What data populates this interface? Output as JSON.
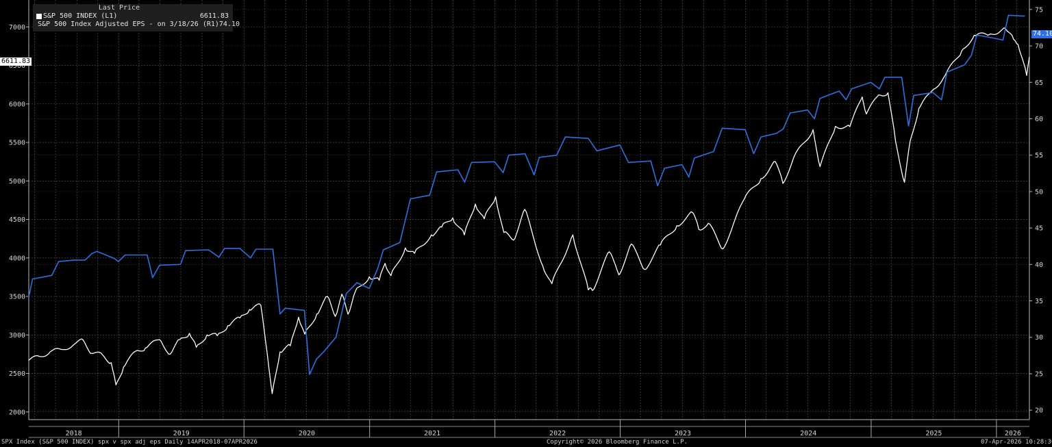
{
  "legend": {
    "header": "Last Price",
    "items": [
      {
        "label": "S&P 500 INDEX  (L1)",
        "value": "6611.83",
        "color": "#ffffff"
      },
      {
        "label": "S&P 500 Index Adjusted EPS -  on 3/18/26  (R1)",
        "value": "74.10",
        "color": "#2f6fe0"
      }
    ]
  },
  "tags": {
    "left": "6611.83",
    "right": "74.10"
  },
  "footer": {
    "left": "SPX Index (S&P 500 INDEX) spx v spx adj eps Daily 14APR2018-07APR2026",
    "center": "Copyright© 2026 Bloomberg Finance L.P.",
    "right": "07-Apr-2026 10:28:30"
  },
  "chart_data": {
    "type": "line",
    "x_range": [
      "2018-04-14",
      "2026-04-07"
    ],
    "x_tick_labels": [
      "2018",
      "2019",
      "2020",
      "2021",
      "2022",
      "2023",
      "2024",
      "2025",
      "2026"
    ],
    "y_left": {
      "range": [
        1900,
        7350
      ],
      "ticks": [
        2000,
        2500,
        3000,
        3500,
        4000,
        4500,
        5000,
        5500,
        6000,
        6500,
        7000
      ]
    },
    "y_right": {
      "range": [
        18.7,
        76.3
      ],
      "ticks": [
        20,
        25,
        30,
        35,
        40,
        45,
        50,
        55,
        60,
        65,
        70,
        75
      ]
    },
    "grid": true,
    "legend_position": "top-left",
    "series": [
      {
        "name": "S&P 500 INDEX  (L1)",
        "axis": "left",
        "color": "#ffffff",
        "points": [
          [
            "2018-04-14",
            2670
          ],
          [
            "2018-05-15",
            2720
          ],
          [
            "2018-06-15",
            2780
          ],
          [
            "2018-07-20",
            2810
          ],
          [
            "2018-08-25",
            2880
          ],
          [
            "2018-09-20",
            2930
          ],
          [
            "2018-10-15",
            2760
          ],
          [
            "2018-11-15",
            2740
          ],
          [
            "2018-12-10",
            2640
          ],
          [
            "2018-12-24",
            2351
          ],
          [
            "2019-01-15",
            2580
          ],
          [
            "2019-02-20",
            2790
          ],
          [
            "2019-03-20",
            2830
          ],
          [
            "2019-04-30",
            2940
          ],
          [
            "2019-05-31",
            2750
          ],
          [
            "2019-06-28",
            2940
          ],
          [
            "2019-07-26",
            3020
          ],
          [
            "2019-08-15",
            2840
          ],
          [
            "2019-09-15",
            3000
          ],
          [
            "2019-10-15",
            2990
          ],
          [
            "2019-11-15",
            3120
          ],
          [
            "2019-12-20",
            3220
          ],
          [
            "2020-01-17",
            3330
          ],
          [
            "2020-02-19",
            3386
          ],
          [
            "2020-03-09",
            2750
          ],
          [
            "2020-03-23",
            2237
          ],
          [
            "2020-04-15",
            2780
          ],
          [
            "2020-05-15",
            2860
          ],
          [
            "2020-06-08",
            3230
          ],
          [
            "2020-06-26",
            3010
          ],
          [
            "2020-07-31",
            3270
          ],
          [
            "2020-08-31",
            3500
          ],
          [
            "2020-09-23",
            3240
          ],
          [
            "2020-10-12",
            3530
          ],
          [
            "2020-10-30",
            3270
          ],
          [
            "2020-11-20",
            3560
          ],
          [
            "2020-12-31",
            3756
          ],
          [
            "2021-01-29",
            3710
          ],
          [
            "2021-02-15",
            3930
          ],
          [
            "2021-03-04",
            3770
          ],
          [
            "2021-04-15",
            4130
          ],
          [
            "2021-05-12",
            4060
          ],
          [
            "2021-06-30",
            4300
          ],
          [
            "2021-07-30",
            4400
          ],
          [
            "2021-08-31",
            4520
          ],
          [
            "2021-10-04",
            4300
          ],
          [
            "2021-11-05",
            4700
          ],
          [
            "2021-12-01",
            4510
          ],
          [
            "2022-01-03",
            4796
          ],
          [
            "2022-01-27",
            4330
          ],
          [
            "2022-02-24",
            4230
          ],
          [
            "2022-03-29",
            4630
          ],
          [
            "2022-05-20",
            3900
          ],
          [
            "2022-06-16",
            3666
          ],
          [
            "2022-08-16",
            4300
          ],
          [
            "2022-09-30",
            3585
          ],
          [
            "2022-10-12",
            3577
          ],
          [
            "2022-11-30",
            4080
          ],
          [
            "2022-12-28",
            3780
          ],
          [
            "2023-02-02",
            4180
          ],
          [
            "2023-03-13",
            3850
          ],
          [
            "2023-04-28",
            4170
          ],
          [
            "2023-06-15",
            4420
          ],
          [
            "2023-07-31",
            4590
          ],
          [
            "2023-08-18",
            4370
          ],
          [
            "2023-09-15",
            4450
          ],
          [
            "2023-10-27",
            4117
          ],
          [
            "2023-12-29",
            4770
          ],
          [
            "2024-02-15",
            5030
          ],
          [
            "2024-03-28",
            5250
          ],
          [
            "2024-04-19",
            4967
          ],
          [
            "2024-05-20",
            5300
          ],
          [
            "2024-07-16",
            5667
          ],
          [
            "2024-08-05",
            5186
          ],
          [
            "2024-09-19",
            5710
          ],
          [
            "2024-10-31",
            5705
          ],
          [
            "2024-12-06",
            6090
          ],
          [
            "2024-12-18",
            5870
          ],
          [
            "2025-01-23",
            6118
          ],
          [
            "2025-02-19",
            6144
          ],
          [
            "2025-03-13",
            5520
          ],
          [
            "2025-04-08",
            4982
          ],
          [
            "2025-04-25",
            5525
          ],
          [
            "2025-05-20",
            5940
          ],
          [
            "2025-06-27",
            6170
          ],
          [
            "2025-07-31",
            6340
          ],
          [
            "2025-09-22",
            6690
          ],
          [
            "2025-10-28",
            6890
          ],
          [
            "2025-12-11",
            6900
          ],
          [
            "2026-01-27",
            6980
          ],
          [
            "2026-02-20",
            6840
          ],
          [
            "2026-03-05",
            6770
          ],
          [
            "2026-03-30",
            6370
          ],
          [
            "2026-04-07",
            6611.83
          ]
        ]
      },
      {
        "name": "S&P 500 Index Adjusted EPS -  on 3/18/26  (R1)",
        "axis": "right",
        "color": "#2f6fe0",
        "points": [
          [
            "2018-04-14",
            35.5
          ],
          [
            "2018-04-25",
            38.0
          ],
          [
            "2018-06-20",
            38.5
          ],
          [
            "2018-07-10",
            40.4
          ],
          [
            "2018-08-25",
            40.6
          ],
          [
            "2018-09-25",
            40.6
          ],
          [
            "2018-10-15",
            41.5
          ],
          [
            "2018-10-30",
            41.8
          ],
          [
            "2018-12-20",
            40.8
          ],
          [
            "2018-12-31",
            40.4
          ],
          [
            "2019-01-20",
            41.3
          ],
          [
            "2019-03-25",
            41.3
          ],
          [
            "2019-04-10",
            38.2
          ],
          [
            "2019-04-30",
            39.9
          ],
          [
            "2019-06-30",
            40.0
          ],
          [
            "2019-07-15",
            41.9
          ],
          [
            "2019-09-20",
            42.0
          ],
          [
            "2019-10-20",
            41.0
          ],
          [
            "2019-11-05",
            42.2
          ],
          [
            "2019-12-20",
            42.2
          ],
          [
            "2020-01-20",
            40.9
          ],
          [
            "2020-02-05",
            42.1
          ],
          [
            "2020-03-25",
            42.1
          ],
          [
            "2020-04-15",
            33.2
          ],
          [
            "2020-04-30",
            34.0
          ],
          [
            "2020-06-25",
            33.7
          ],
          [
            "2020-07-10",
            24.9
          ],
          [
            "2020-07-30",
            27.0
          ],
          [
            "2020-08-20",
            28.0
          ],
          [
            "2020-09-25",
            30.0
          ],
          [
            "2020-10-25",
            36.0
          ],
          [
            "2020-11-25",
            37.5
          ],
          [
            "2020-12-31",
            36.7
          ],
          [
            "2021-01-25",
            39.5
          ],
          [
            "2021-02-10",
            42.0
          ],
          [
            "2021-03-30",
            43.0
          ],
          [
            "2021-04-30",
            49.0
          ],
          [
            "2021-06-25",
            49.5
          ],
          [
            "2021-07-15",
            52.7
          ],
          [
            "2021-09-15",
            53.0
          ],
          [
            "2021-10-05",
            51.3
          ],
          [
            "2021-10-25",
            54.0
          ],
          [
            "2021-12-31",
            54.1
          ],
          [
            "2022-01-25",
            52.6
          ],
          [
            "2022-02-10",
            55.0
          ],
          [
            "2022-03-30",
            55.2
          ],
          [
            "2022-04-25",
            52.3
          ],
          [
            "2022-05-10",
            54.7
          ],
          [
            "2022-06-30",
            55.0
          ],
          [
            "2022-07-25",
            57.5
          ],
          [
            "2022-09-30",
            57.3
          ],
          [
            "2022-10-25",
            55.6
          ],
          [
            "2022-12-31",
            56.4
          ],
          [
            "2023-01-25",
            54.0
          ],
          [
            "2023-03-31",
            54.2
          ],
          [
            "2023-04-20",
            50.8
          ],
          [
            "2023-05-10",
            53.2
          ],
          [
            "2023-06-30",
            53.7
          ],
          [
            "2023-07-20",
            52.0
          ],
          [
            "2023-08-05",
            54.6
          ],
          [
            "2023-09-30",
            55.5
          ],
          [
            "2023-10-25",
            58.7
          ],
          [
            "2023-12-31",
            58.5
          ],
          [
            "2024-01-25",
            55.2
          ],
          [
            "2024-02-15",
            57.5
          ],
          [
            "2024-03-31",
            58.0
          ],
          [
            "2024-04-20",
            58.6
          ],
          [
            "2024-05-10",
            60.8
          ],
          [
            "2024-06-30",
            61.2
          ],
          [
            "2024-07-20",
            60.0
          ],
          [
            "2024-08-05",
            62.8
          ],
          [
            "2024-09-30",
            63.8
          ],
          [
            "2024-10-20",
            62.6
          ],
          [
            "2024-11-05",
            64.1
          ],
          [
            "2024-12-31",
            65.0
          ],
          [
            "2025-01-25",
            64.1
          ],
          [
            "2025-02-10",
            65.7
          ],
          [
            "2025-03-31",
            65.7
          ],
          [
            "2025-04-20",
            59.0
          ],
          [
            "2025-05-05",
            63.2
          ],
          [
            "2025-06-30",
            63.6
          ],
          [
            "2025-07-25",
            62.6
          ],
          [
            "2025-08-10",
            66.4
          ],
          [
            "2025-09-30",
            67.4
          ],
          [
            "2025-10-20",
            68.7
          ],
          [
            "2025-11-05",
            71.5
          ],
          [
            "2025-12-31",
            71.0
          ],
          [
            "2026-01-20",
            70.8
          ],
          [
            "2026-02-05",
            74.2
          ],
          [
            "2026-03-18",
            74.1
          ],
          [
            "2026-03-25",
            74.1
          ]
        ]
      }
    ]
  }
}
